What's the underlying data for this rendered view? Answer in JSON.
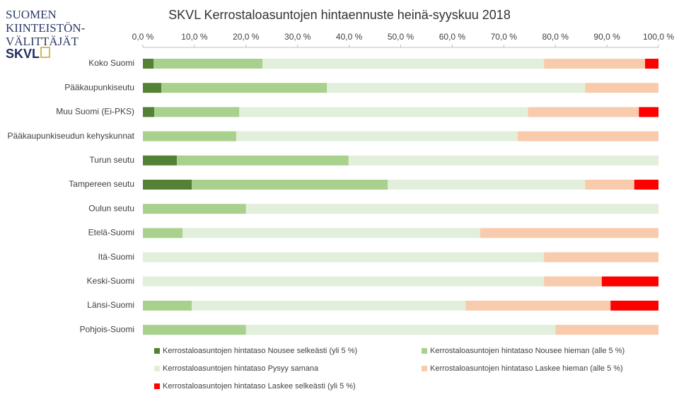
{
  "logo": {
    "lines": [
      "SUOMEN",
      "KIINTEISTÖN-",
      "VÄLITTÄJÄT"
    ],
    "brand": "SKVL"
  },
  "chart_data": {
    "type": "stacked_barh",
    "title": "SKVL Kerrostaloasuntojen hintaennuste heinä-syyskuu 2018",
    "categories": [
      "Koko Suomi",
      "Pääkaupunkiseutu",
      "Muu Suomi (Ei-PKS)",
      "Pääkaupunkiseudun kehyskunnat",
      "Turun seutu",
      "Tampereen seutu",
      "Oulun seutu",
      "Etelä-Suomi",
      "Itä-Suomi",
      "Keski-Suomi",
      "Länsi-Suomi",
      "Pohjois-Suomi"
    ],
    "series": [
      {
        "name": "Kerrostaloasuntojen hintataso Nousee selkeästi (yli 5 %)",
        "color": "#548235",
        "values": [
          2.1,
          3.6,
          2.2,
          0,
          6.6,
          9.5,
          0,
          0,
          0,
          0,
          0,
          0
        ]
      },
      {
        "name": "Kerrostaloasuntojen hintataso Nousee hieman (alle 5 %)",
        "color": "#a9d18e",
        "values": [
          21.1,
          32.1,
          16.5,
          18.1,
          33.3,
          38.0,
          20.0,
          7.7,
          0,
          0,
          9.5,
          20.0
        ]
      },
      {
        "name": "Kerrostaloasuntojen hintataso Pysyy samana",
        "color": "#e2efda",
        "values": [
          54.6,
          50.1,
          56.0,
          54.6,
          60.1,
          38.3,
          80.0,
          57.7,
          77.8,
          77.8,
          53.1,
          60.0
        ]
      },
      {
        "name": "Kerrostaloasuntojen hintataso Laskee hieman (alle 5 %)",
        "color": "#f8cbad",
        "values": [
          19.6,
          14.2,
          21.5,
          27.3,
          0,
          9.5,
          0,
          34.6,
          22.2,
          11.2,
          28.1,
          20.0
        ]
      },
      {
        "name": "Kerrostaloasuntojen hintataso Laskee selkeästi (yli 5 %)",
        "color": "#ff0000",
        "values": [
          2.6,
          0,
          3.8,
          0,
          0,
          4.7,
          0,
          0,
          0,
          11.0,
          9.3,
          0
        ]
      }
    ],
    "xlim": [
      0,
      100
    ],
    "xticks": [
      {
        "value": 0,
        "label": "0,0 %"
      },
      {
        "value": 10,
        "label": "10,0 %"
      },
      {
        "value": 20,
        "label": "20,0 %"
      },
      {
        "value": 30,
        "label": "30,0 %"
      },
      {
        "value": 40,
        "label": "40,0 %"
      },
      {
        "value": 50,
        "label": "50,0 %"
      },
      {
        "value": 60,
        "label": "60,0 %"
      },
      {
        "value": 70,
        "label": "70,0 %"
      },
      {
        "value": 80,
        "label": "80,0 %"
      },
      {
        "value": 90,
        "label": "90,0 %"
      },
      {
        "value": 100,
        "label": "100,0 %"
      }
    ],
    "grid": false,
    "legend": "bottom"
  }
}
